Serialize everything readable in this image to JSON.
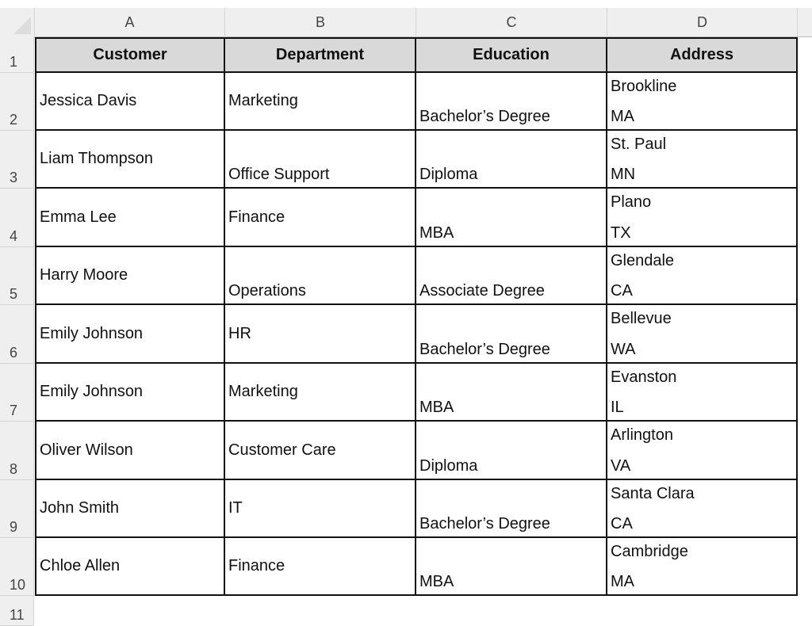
{
  "columns": [
    "A",
    "B",
    "C",
    "D"
  ],
  "row_numbers": [
    "1",
    "2",
    "3",
    "4",
    "5",
    "6",
    "7",
    "8",
    "9",
    "10",
    "11"
  ],
  "headers": [
    "Customer",
    "Department",
    "Education",
    "Address"
  ],
  "rows": [
    {
      "customer": "Jessica Davis",
      "department": "Marketing",
      "education": "Bachelor’s Degree",
      "city": "Brookline",
      "state": "MA"
    },
    {
      "customer": "Liam Thompson",
      "department": "Office Support",
      "education": "Diploma",
      "city": "St. Paul",
      "state": "MN"
    },
    {
      "customer": "Emma Lee",
      "department": "Finance",
      "education": "MBA",
      "city": "Plano",
      "state": "TX"
    },
    {
      "customer": "Harry Moore",
      "department": "Operations",
      "education": "Associate Degree",
      "city": "Glendale",
      "state": "CA"
    },
    {
      "customer": "Emily Johnson",
      "department": "HR",
      "education": "Bachelor’s Degree",
      "city": "Bellevue",
      "state": "WA"
    },
    {
      "customer": "Emily Johnson",
      "department": "Marketing",
      "education": "MBA",
      "city": "Evanston",
      "state": "IL"
    },
    {
      "customer": "Oliver Wilson",
      "department": "Customer Care",
      "education": "Diploma",
      "city": "Arlington",
      "state": "VA"
    },
    {
      "customer": "John Smith",
      "department": "IT",
      "education": "Bachelor’s Degree",
      "city": "Santa Clara",
      "state": "CA"
    },
    {
      "customer": "Chloe Allen",
      "department": "Finance",
      "education": "MBA",
      "city": "Cambridge",
      "state": "MA"
    }
  ],
  "colors": {
    "header_fill": "#d9d9d9",
    "sheet_header": "#efefef",
    "border": "#111111"
  }
}
